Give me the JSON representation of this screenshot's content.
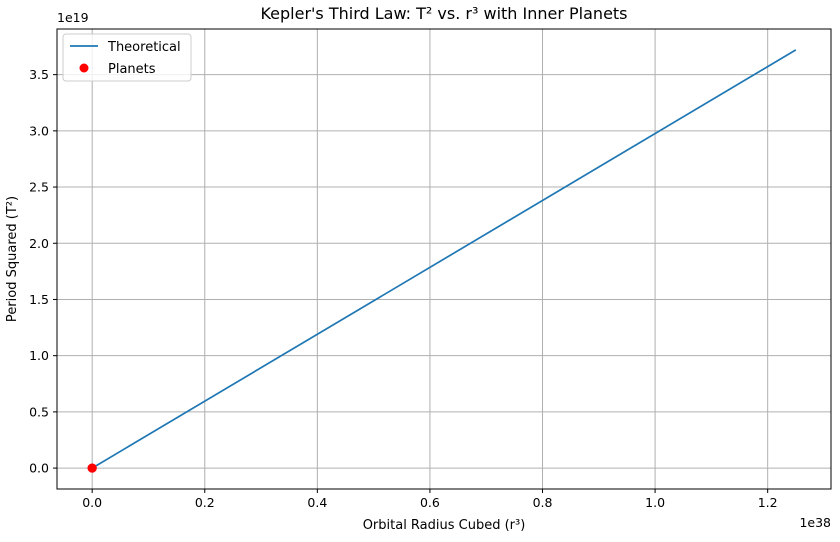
{
  "chart_data": {
    "type": "line",
    "title": "Kepler's Third Law: T² vs. r³ with Inner Planets",
    "xlabel": "Orbital Radius Cubed (r³)",
    "ylabel": "Period Squared (T²)",
    "x_offset_text": "1e38",
    "y_offset_text": "1e19",
    "xlim": [
      -0.0625,
      1.3125
    ],
    "ylim": [
      -0.186,
      3.906
    ],
    "x_scale": 1e+38,
    "y_scale": 1e+19,
    "x_ticks": [
      0.0,
      0.2,
      0.4,
      0.6,
      0.8,
      1.0,
      1.2
    ],
    "x_tick_labels": [
      "0.0",
      "0.2",
      "0.4",
      "0.6",
      "0.8",
      "1.0",
      "1.2"
    ],
    "y_ticks": [
      0.0,
      0.5,
      1.0,
      1.5,
      2.0,
      2.5,
      3.0,
      3.5
    ],
    "y_tick_labels": [
      "0.0",
      "0.5",
      "1.0",
      "1.5",
      "2.0",
      "2.5",
      "3.0",
      "3.5"
    ],
    "grid": true,
    "legend_position": "top-left",
    "series": [
      {
        "name": "Theoretical",
        "kind": "line",
        "color": "#1f77b4",
        "x": [
          0.0,
          1.25
        ],
        "y": [
          0.0,
          3.72
        ]
      },
      {
        "name": "Planets",
        "kind": "scatter",
        "color": "#ff0000",
        "x": [
          0.0,
          0.0,
          0.0,
          0.0
        ],
        "y": [
          0.0,
          0.0,
          0.0,
          0.0
        ]
      }
    ]
  }
}
